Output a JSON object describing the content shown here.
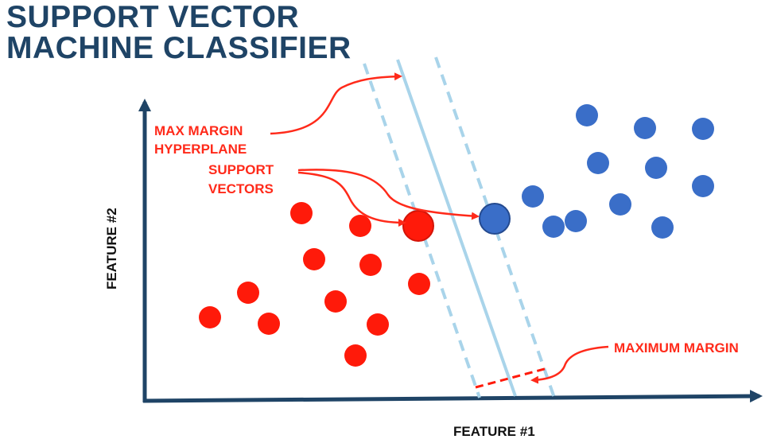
{
  "title": {
    "line1": "SUPPORT VECTOR",
    "line2": "MACHINE CLASSIFIER"
  },
  "labels": {
    "max_margin_hyperplane_line1": "MAX MARGIN",
    "max_margin_hyperplane_line2": "HYPERPLANE",
    "support_vectors_line1": "SUPPORT",
    "support_vectors_line2": "VECTORS",
    "maximum_margin": "MAXIMUM MARGIN",
    "x_axis": "FEATURE #1",
    "y_axis": "FEATURE #2"
  },
  "colors": {
    "title": "#1f4466",
    "axis": "#1f4466",
    "class_red": "#ff1a0a",
    "class_blue": "#3a6ec8",
    "hyperplane": "#a9d4ea",
    "annotation": "#ff2a1a"
  },
  "icons": [
    "arrow-annotation",
    "axis-arrow"
  ]
}
